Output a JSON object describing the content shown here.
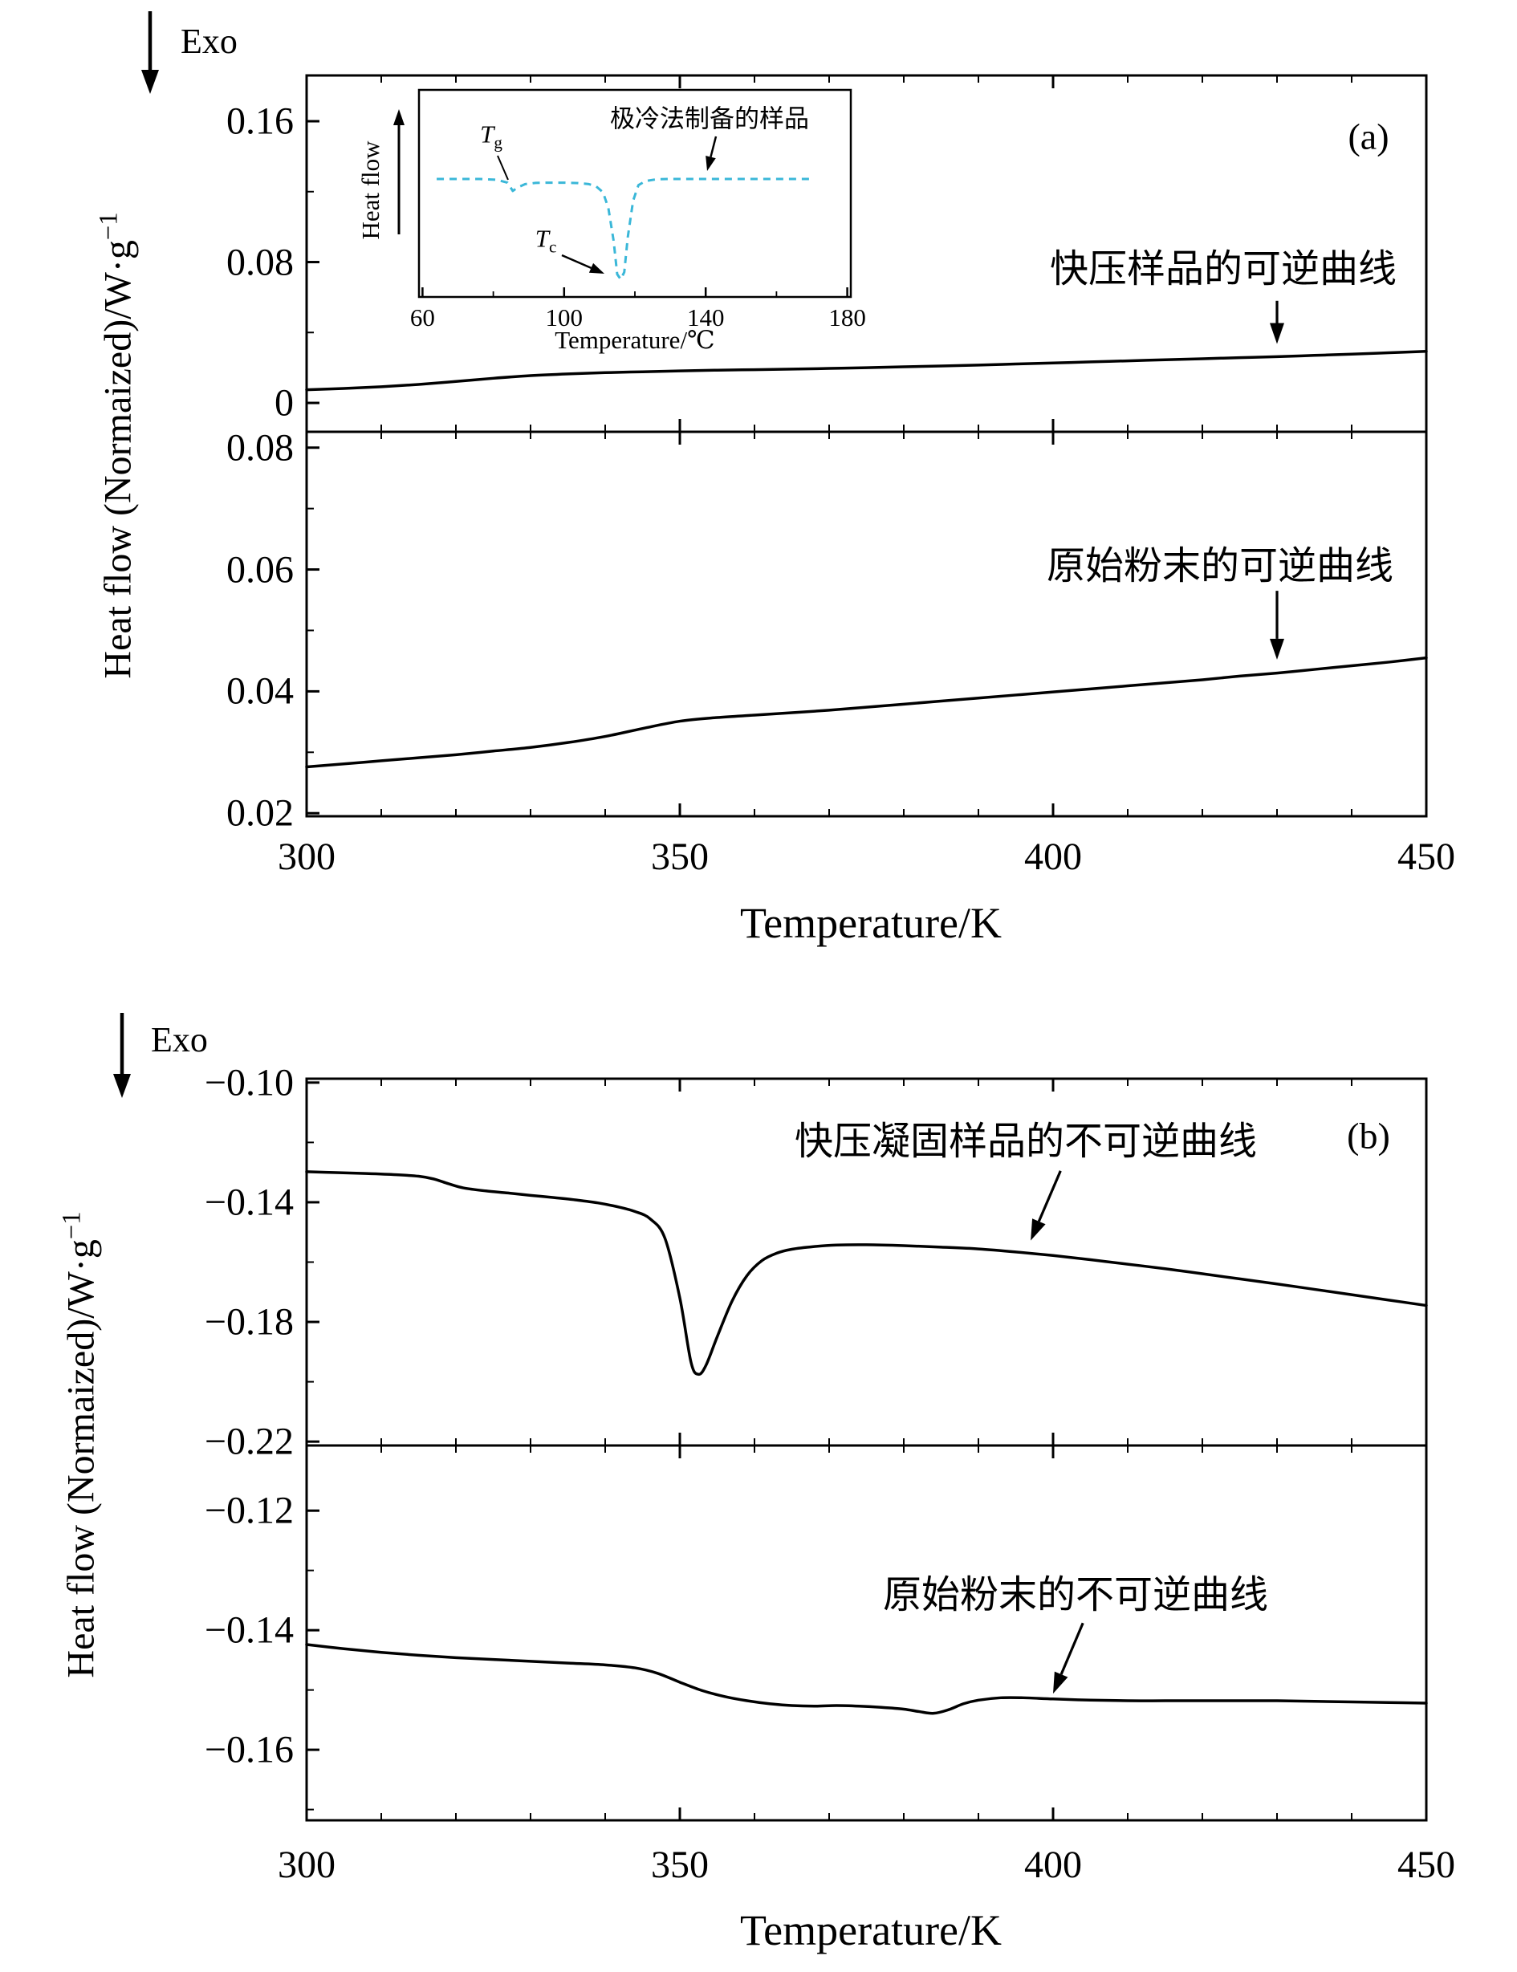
{
  "page": {
    "background": "#ffffff",
    "curve_color": "#000000",
    "inset_curve_color": "#3ab7d8"
  },
  "figure_a": {
    "tag": "(a)",
    "exo": "Exo",
    "ylabel_main": "Heat flow (Normaized)/W·g",
    "ylabel_sup": "−1",
    "xlabel": "Temperature/K",
    "annotation_top": "快压样品的可逆曲线",
    "annotation_bottom": "原始粉末的可逆曲线",
    "inset": {
      "ylabel": "Heat flow",
      "xlabel": "Temperature/℃",
      "tg_main": "T",
      "tg_sub": "g",
      "tc_main": "T",
      "tc_sub": "c",
      "sample_label": "极冷法制备的样品"
    }
  },
  "figure_b": {
    "tag": "(b)",
    "exo": "Exo",
    "ylabel_main": "Heat flow (Normaized)/W·g",
    "ylabel_sup": "−1",
    "xlabel": "Temperature/K",
    "annotation_top": "快压凝固样品的不可逆曲线",
    "annotation_bottom": "原始粉末的不可逆曲线"
  },
  "chart_data": [
    {
      "id": "a-top",
      "type": "line",
      "title": "reversible curve of rapidly pressed sample",
      "xlabel": "Temperature/K",
      "ylabel": "Heat flow (Normaized)/W·g−1",
      "xlim": [
        300,
        450
      ],
      "ylim": [
        -0.0164,
        0.186
      ],
      "xticks": [
        300,
        350,
        400,
        450
      ],
      "xminor": [
        310,
        320,
        330,
        340,
        360,
        370,
        380,
        390,
        410,
        420,
        430,
        440
      ],
      "yticks": [
        0,
        0.08,
        0.16
      ],
      "ytick_labels": [
        "0",
        "0.08",
        "0.16"
      ],
      "yminor": [
        0.04,
        0.12
      ],
      "series": [
        {
          "name": "快压样品的可逆曲线",
          "color": "#000000",
          "x": [
            300,
            305,
            310,
            315,
            320,
            325,
            330,
            335,
            340,
            345,
            350,
            355,
            360,
            365,
            370,
            375,
            380,
            385,
            390,
            395,
            400,
            405,
            410,
            415,
            420,
            425,
            430,
            435,
            440,
            445,
            450
          ],
          "y": [
            0.0075,
            0.0082,
            0.0092,
            0.0105,
            0.0122,
            0.014,
            0.0155,
            0.0165,
            0.0172,
            0.0177,
            0.0182,
            0.0186,
            0.0189,
            0.0192,
            0.0196,
            0.02,
            0.0205,
            0.021,
            0.0215,
            0.0221,
            0.0227,
            0.0233,
            0.0239,
            0.0245,
            0.0251,
            0.0257,
            0.0263,
            0.027,
            0.0277,
            0.0285,
            0.0293
          ]
        }
      ],
      "annotation_arrow": {
        "from": [
          430,
          0.058
        ],
        "to": [
          430,
          0.0335
        ]
      }
    },
    {
      "id": "a-bottom",
      "type": "line",
      "title": "reversible curve of original powder",
      "xlabel": "Temperature/K",
      "ylabel": "Heat flow (Normaized)/W·g−1",
      "xlim": [
        300,
        450
      ],
      "ylim": [
        0.0195,
        0.0826
      ],
      "xticks": [
        300,
        350,
        400,
        450
      ],
      "xtick_labels": [
        "300",
        "350",
        "400",
        "450"
      ],
      "xminor": [
        310,
        320,
        330,
        340,
        360,
        370,
        380,
        390,
        410,
        420,
        430,
        440
      ],
      "yticks": [
        0.02,
        0.04,
        0.06,
        0.08
      ],
      "ytick_labels": [
        "0.02",
        "0.04",
        "0.06",
        "0.08"
      ],
      "yminor": [
        0.03,
        0.05,
        0.07
      ],
      "series": [
        {
          "name": "原始粉末的可逆曲线",
          "color": "#000000",
          "x": [
            300,
            305,
            310,
            315,
            320,
            325,
            330,
            335,
            340,
            345,
            350,
            355,
            360,
            365,
            370,
            375,
            380,
            385,
            390,
            395,
            400,
            405,
            410,
            415,
            420,
            425,
            430,
            435,
            440,
            445,
            450
          ],
          "y": [
            0.0276,
            0.0281,
            0.0286,
            0.0291,
            0.0296,
            0.0302,
            0.0308,
            0.0316,
            0.0326,
            0.0339,
            0.0351,
            0.0357,
            0.0361,
            0.0365,
            0.0369,
            0.0374,
            0.0379,
            0.0384,
            0.0389,
            0.0394,
            0.0399,
            0.0404,
            0.0409,
            0.0414,
            0.0419,
            0.0425,
            0.043,
            0.0436,
            0.0442,
            0.0448,
            0.0455
          ]
        }
      ],
      "annotation_arrow": {
        "from": [
          430,
          0.0565
        ],
        "to": [
          430,
          0.0452
        ]
      }
    },
    {
      "id": "b-top",
      "type": "line",
      "title": "irreversible curve of rapid-pressure solidified sample",
      "xlabel": "Temperature/K",
      "ylabel": "Heat flow (Normaized)/W·g−1",
      "xlim": [
        300,
        450
      ],
      "ylim": [
        -0.2213,
        -0.0987
      ],
      "xticks": [
        300,
        350,
        400,
        450
      ],
      "xminor": [
        310,
        320,
        330,
        340,
        360,
        370,
        380,
        390,
        410,
        420,
        430,
        440
      ],
      "yticks": [
        -0.1,
        -0.14,
        -0.18,
        -0.22
      ],
      "ytick_labels": [
        "−0.10",
        "−0.14",
        "−0.18",
        "−0.22"
      ],
      "yminor": [
        -0.12,
        -0.16,
        -0.2
      ],
      "series": [
        {
          "name": "快压凝固样品的不可逆曲线",
          "color": "#000000",
          "x": [
            300,
            304,
            308,
            312,
            315,
            317,
            319,
            321,
            324,
            327,
            330,
            333,
            336,
            339,
            342,
            344,
            346,
            348,
            350,
            351.5,
            352.5,
            353.5,
            355,
            357,
            359,
            361,
            363,
            365,
            368,
            371,
            375,
            380,
            385,
            390,
            395,
            400,
            405,
            410,
            415,
            420,
            425,
            430,
            435,
            440,
            445,
            450
          ],
          "y": [
            -0.1298,
            -0.1301,
            -0.1304,
            -0.1308,
            -0.1313,
            -0.1322,
            -0.1338,
            -0.1352,
            -0.1362,
            -0.1369,
            -0.1377,
            -0.1384,
            -0.1392,
            -0.1402,
            -0.1417,
            -0.1431,
            -0.1455,
            -0.152,
            -0.172,
            -0.1935,
            -0.1975,
            -0.1945,
            -0.185,
            -0.173,
            -0.1645,
            -0.1595,
            -0.157,
            -0.1557,
            -0.1548,
            -0.1543,
            -0.1542,
            -0.1545,
            -0.155,
            -0.1556,
            -0.1566,
            -0.1578,
            -0.1592,
            -0.1607,
            -0.1622,
            -0.1639,
            -0.1656,
            -0.1673,
            -0.1691,
            -0.1709,
            -0.1727,
            -0.1745
          ]
        }
      ],
      "annotation_arrow": {
        "from": [
          401,
          -0.1295
        ],
        "to": [
          397,
          -0.1528
        ]
      }
    },
    {
      "id": "b-bottom",
      "type": "line",
      "title": "irreversible curve of original powder",
      "xlabel": "Temperature/K",
      "ylabel": "Heat flow (Normaized)/W·g−1",
      "xlim": [
        300,
        450
      ],
      "ylim": [
        -0.1718,
        -0.1091
      ],
      "xticks": [
        300,
        350,
        400,
        450
      ],
      "xtick_labels": [
        "300",
        "350",
        "400",
        "450"
      ],
      "xminor": [
        310,
        320,
        330,
        340,
        360,
        370,
        380,
        390,
        410,
        420,
        430,
        440
      ],
      "yticks": [
        -0.12,
        -0.14,
        -0.16
      ],
      "ytick_labels": [
        "−0.12",
        "−0.14",
        "−0.16"
      ],
      "yminor": [
        -0.13,
        -0.15,
        -0.17
      ],
      "series": [
        {
          "name": "原始粉末的不可逆曲线",
          "color": "#000000",
          "x": [
            300,
            305,
            310,
            315,
            320,
            325,
            330,
            335,
            340,
            344,
            347,
            350,
            353,
            356,
            359,
            362,
            365,
            368,
            371,
            374,
            377,
            380,
            382,
            384,
            386,
            388,
            390,
            393,
            396,
            400,
            405,
            410,
            415,
            420,
            425,
            430,
            435,
            440,
            445,
            450
          ],
          "y": [
            -0.1424,
            -0.1431,
            -0.1437,
            -0.1442,
            -0.1446,
            -0.1449,
            -0.1452,
            -0.1455,
            -0.1458,
            -0.1463,
            -0.1472,
            -0.1487,
            -0.1501,
            -0.1511,
            -0.1518,
            -0.1523,
            -0.1526,
            -0.1527,
            -0.1526,
            -0.1527,
            -0.1529,
            -0.1532,
            -0.1536,
            -0.1539,
            -0.1533,
            -0.1523,
            -0.1517,
            -0.1513,
            -0.1513,
            -0.1515,
            -0.1517,
            -0.1518,
            -0.1518,
            -0.1518,
            -0.1518,
            -0.1518,
            -0.1519,
            -0.152,
            -0.1521,
            -0.1522
          ]
        }
      ],
      "annotation_arrow": {
        "from": [
          404,
          -0.1388
        ],
        "to": [
          400,
          -0.1506
        ]
      }
    },
    {
      "id": "inset",
      "type": "line",
      "title": "极冷法制备的样品 (DSC of quenched sample)",
      "xlabel": "Temperature/℃",
      "ylabel": "Heat flow",
      "xlim": [
        59,
        181
      ],
      "ylim": [
        0,
        1
      ],
      "xticks": [
        60,
        100,
        140,
        180
      ],
      "xtick_labels": [
        "60",
        "100",
        "140",
        "180"
      ],
      "xminor": [
        80,
        120,
        160
      ],
      "yticks": [],
      "ytick_labels": [],
      "annotations": [
        "Tg (glass transition ~85℃)",
        "Tc (crystallization ~115℃)"
      ],
      "series": [
        {
          "name": "极冷法制备的样品",
          "color": "#3ab7d8",
          "style": "dashed",
          "x": [
            64,
            70,
            76,
            81,
            84,
            85.5,
            87,
            89,
            92,
            96,
            100,
            104,
            107,
            109,
            111,
            112.5,
            114,
            115,
            116,
            117,
            118,
            119.5,
            121,
            123,
            126,
            130,
            136,
            143,
            150,
            158,
            165,
            170
          ],
          "y": [
            0.57,
            0.57,
            0.57,
            0.566,
            0.552,
            0.512,
            0.53,
            0.545,
            0.551,
            0.552,
            0.552,
            0.55,
            0.545,
            0.535,
            0.505,
            0.43,
            0.27,
            0.11,
            0.085,
            0.12,
            0.29,
            0.465,
            0.54,
            0.56,
            0.568,
            0.57,
            0.57,
            0.57,
            0.57,
            0.57,
            0.57,
            0.57
          ]
        }
      ]
    }
  ]
}
